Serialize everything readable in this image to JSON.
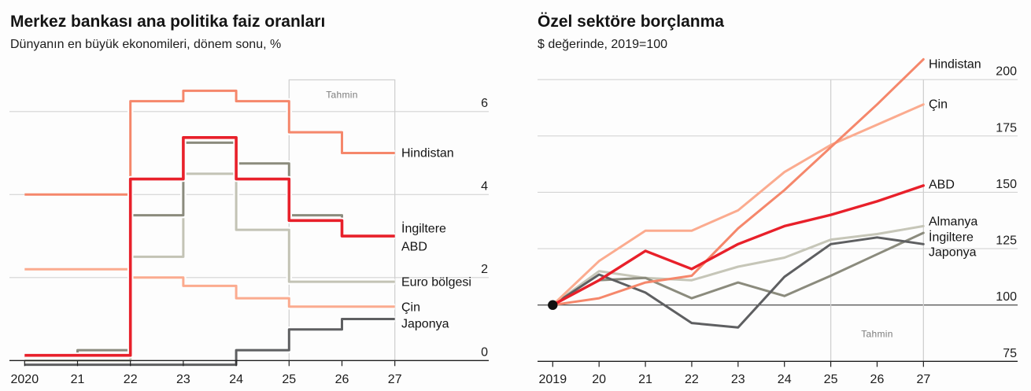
{
  "chart_data": [
    {
      "type": "line",
      "step": true,
      "step_note": "each value spans the period from x[i] to x[i+1]",
      "title": "Merkez bankası ana politika faiz oranları",
      "subtitle": "Dünyanın en büyük ekonomileri, dönem sonu, %",
      "xlabel": "",
      "ylabel": "%",
      "x": [
        "2020",
        "21",
        "22",
        "23",
        "24",
        "25",
        "26",
        "27"
      ],
      "yticks": [
        0,
        2,
        4,
        6
      ],
      "ylim": [
        0,
        6.8
      ],
      "grid": true,
      "y_axis_side": "right",
      "legend": "direct labels at right end of lines",
      "forecast": {
        "label": "Tahmin",
        "from": "25",
        "to": "27"
      },
      "series": [
        {
          "name": "Japonya",
          "color": "#5e5f61",
          "values": [
            -0.1,
            -0.1,
            -0.1,
            -0.1,
            0.25,
            0.75,
            1.0
          ]
        },
        {
          "name": "Çin",
          "color": "#fbab8f",
          "values": [
            2.2,
            2.2,
            2.0,
            1.8,
            1.5,
            1.3,
            1.3
          ]
        },
        {
          "name": "Euro bölgesi",
          "color": "#c3c3b5",
          "values": [
            0,
            0,
            2.5,
            4.5,
            3.15,
            1.9,
            1.9
          ]
        },
        {
          "name": "İngiltere",
          "color": "#8b8b7d",
          "values": [
            0.1,
            0.25,
            3.5,
            5.25,
            4.75,
            3.5,
            3.0
          ]
        },
        {
          "name": "Hindistan",
          "color": "#f5876b",
          "values": [
            4.0,
            4.0,
            6.25,
            6.5,
            6.25,
            5.5,
            5.0
          ]
        },
        {
          "name": "ABD",
          "color": "#e8202a",
          "values": [
            0.125,
            0.125,
            4.375,
            5.375,
            4.375,
            3.375,
            3.0
          ]
        }
      ]
    },
    {
      "type": "line",
      "title": "Özel sektöre borçlanma",
      "subtitle": "$ değerinde, 2019=100",
      "xlabel": "",
      "ylabel": "2019=100",
      "x": [
        "2019",
        "20",
        "21",
        "22",
        "23",
        "24",
        "25",
        "26",
        "27"
      ],
      "yticks": [
        75,
        100,
        125,
        150,
        175,
        200
      ],
      "ylim": [
        75,
        210
      ],
      "grid": true,
      "y_axis_side": "right",
      "legend": "direct labels at right end of lines",
      "baseline": 100,
      "start_marker": {
        "x": "2019",
        "value": 100
      },
      "forecast": {
        "label": "Tahmin",
        "from": "25",
        "to": "27"
      },
      "series": [
        {
          "name": "Almanya",
          "color": "#c6c6b8",
          "values": [
            100,
            115,
            112,
            111,
            117,
            121,
            129,
            131.5,
            135
          ]
        },
        {
          "name": "İngiltere",
          "color": "#8b8b7d",
          "values": [
            100,
            111,
            112,
            103,
            110,
            104,
            113,
            122.5,
            132
          ]
        },
        {
          "name": "Japonya",
          "color": "#5e5f61",
          "values": [
            100,
            113.5,
            105.5,
            92,
            90,
            112.5,
            127,
            130,
            127
          ]
        },
        {
          "name": "Çin",
          "color": "#fbab8f",
          "values": [
            100,
            119.5,
            133,
            133,
            142,
            159,
            171,
            180,
            189
          ]
        },
        {
          "name": "Hindistan",
          "color": "#f5876b",
          "values": [
            100,
            103,
            110,
            113,
            134,
            151,
            170,
            189,
            209
          ]
        },
        {
          "name": "ABD",
          "color": "#e8202a",
          "values": [
            100,
            111,
            124,
            116,
            127,
            135,
            140,
            146,
            153
          ]
        }
      ]
    }
  ]
}
